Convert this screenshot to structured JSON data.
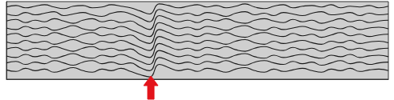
{
  "chart_data": {
    "type": "line",
    "tick_labels": false,
    "grid": false,
    "line_style": "solid",
    "x": [
      0,
      1,
      2,
      3,
      4,
      5,
      6,
      7,
      8,
      9,
      10,
      11,
      12,
      13,
      14,
      15,
      16,
      17,
      18,
      19,
      20,
      21,
      22,
      23,
      24,
      25,
      26,
      27,
      28,
      29,
      30,
      31,
      32,
      33,
      34,
      35,
      36,
      37,
      38,
      39,
      40
    ],
    "xlim": [
      0,
      40
    ],
    "ylim": [
      0,
      100
    ],
    "series": [
      {
        "color": "#1a1a1a",
        "values": [
          93,
          95,
          92,
          94,
          96,
          93,
          91,
          94,
          95,
          92,
          93,
          96,
          94,
          92,
          88,
          84,
          97,
          95,
          92,
          94,
          96,
          93,
          95,
          92,
          94,
          97,
          93,
          91,
          94,
          96,
          92,
          94,
          95,
          93,
          96,
          92,
          94,
          93,
          95,
          92,
          94
        ]
      },
      {
        "color": "#1a1a1a",
        "values": [
          84,
          82,
          86,
          83,
          85,
          87,
          82,
          84,
          86,
          83,
          81,
          85,
          87,
          84,
          79,
          74,
          90,
          86,
          83,
          85,
          82,
          86,
          84,
          81,
          85,
          87,
          83,
          85,
          82,
          86,
          84,
          82,
          85,
          87,
          83,
          84,
          86,
          82,
          85,
          83,
          84
        ]
      },
      {
        "color": "#1a1a1a",
        "values": [
          75,
          77,
          73,
          76,
          74,
          78,
          75,
          72,
          76,
          78,
          74,
          76,
          73,
          75,
          69,
          64,
          82,
          78,
          74,
          76,
          73,
          77,
          75,
          78,
          74,
          72,
          76,
          78,
          75,
          73,
          77,
          74,
          76,
          72,
          75,
          78,
          74,
          76,
          73,
          75,
          76
        ]
      },
      {
        "color": "#1a1a1a",
        "values": [
          66,
          64,
          68,
          65,
          67,
          63,
          66,
          69,
          65,
          63,
          67,
          65,
          68,
          64,
          59,
          55,
          73,
          69,
          65,
          67,
          64,
          68,
          66,
          63,
          67,
          69,
          65,
          63,
          67,
          64,
          66,
          68,
          65,
          63,
          67,
          65,
          68,
          64,
          66,
          67,
          65
        ]
      },
      {
        "color": "#1a1a1a",
        "values": [
          57,
          59,
          55,
          58,
          56,
          60,
          57,
          54,
          58,
          60,
          56,
          58,
          55,
          57,
          50,
          46,
          64,
          60,
          56,
          58,
          55,
          59,
          57,
          60,
          56,
          54,
          58,
          60,
          57,
          55,
          59,
          56,
          58,
          54,
          57,
          60,
          56,
          58,
          55,
          57,
          58
        ]
      },
      {
        "color": "#1a1a1a",
        "values": [
          48,
          46,
          50,
          47,
          49,
          45,
          48,
          51,
          47,
          45,
          49,
          47,
          50,
          46,
          41,
          37,
          55,
          51,
          47,
          49,
          46,
          50,
          48,
          45,
          49,
          51,
          47,
          45,
          49,
          46,
          48,
          50,
          47,
          45,
          49,
          47,
          50,
          46,
          48,
          49,
          47
        ]
      },
      {
        "color": "#1a1a1a",
        "values": [
          39,
          41,
          37,
          40,
          38,
          42,
          39,
          36,
          40,
          42,
          38,
          40,
          37,
          39,
          32,
          28,
          46,
          42,
          38,
          40,
          37,
          41,
          39,
          42,
          38,
          36,
          40,
          42,
          39,
          37,
          41,
          38,
          40,
          36,
          39,
          42,
          38,
          40,
          37,
          39,
          40
        ]
      },
      {
        "color": "#1a1a1a",
        "values": [
          30,
          28,
          32,
          29,
          31,
          27,
          30,
          33,
          29,
          27,
          31,
          29,
          32,
          28,
          23,
          19,
          37,
          33,
          29,
          31,
          28,
          32,
          30,
          27,
          31,
          33,
          29,
          27,
          31,
          28,
          30,
          32,
          29,
          27,
          31,
          29,
          32,
          28,
          30,
          31,
          29
        ]
      },
      {
        "color": "#1a1a1a",
        "values": [
          21,
          23,
          19,
          22,
          20,
          24,
          21,
          18,
          22,
          24,
          20,
          22,
          19,
          21,
          15,
          11,
          28,
          24,
          20,
          22,
          19,
          23,
          21,
          24,
          20,
          18,
          22,
          24,
          21,
          19,
          23,
          20,
          22,
          18,
          21,
          24,
          20,
          22,
          19,
          21,
          22
        ]
      },
      {
        "color": "#1a1a1a",
        "values": [
          12,
          10,
          14,
          11,
          13,
          9,
          12,
          15,
          11,
          9,
          13,
          11,
          14,
          10,
          6,
          3,
          19,
          15,
          11,
          13,
          10,
          14,
          12,
          9,
          13,
          15,
          11,
          9,
          13,
          10,
          12,
          14,
          11,
          9,
          13,
          11,
          14,
          10,
          12,
          13,
          11
        ]
      }
    ]
  }
}
